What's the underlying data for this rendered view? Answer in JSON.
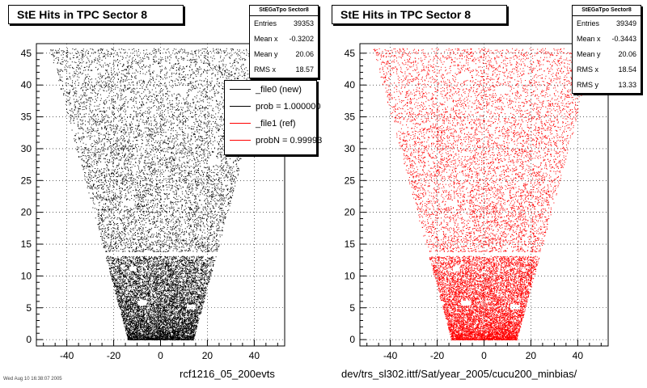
{
  "panels": [
    {
      "title": "StE Hits in TPC Sector 8",
      "color": "#000000",
      "stats": {
        "name": "StEGaTpo Sector8",
        "rows": [
          {
            "label": "Entries",
            "value": "39353"
          },
          {
            "label": "Mean x",
            "value": "-0.3202"
          },
          {
            "label": "Mean y",
            "value": "20.06"
          },
          {
            "label": "RMS x",
            "value": "18.57"
          }
        ]
      },
      "legend": [
        {
          "label": "_file0 (new)",
          "color": "#000000"
        },
        {
          "label": "prob = 1.000000",
          "color": "#000000"
        },
        {
          "label": "_file1 (ref)",
          "color": "#ff0000"
        },
        {
          "label": "probN = 0.99993",
          "color": "#ff0000"
        }
      ],
      "footer": "rcf1216_05_200evts"
    },
    {
      "title": "StE Hits in TPC Sector 8",
      "color": "#ff0000",
      "stats": {
        "name": "StEGaTpo Sector8",
        "rows": [
          {
            "label": "Entries",
            "value": "39349"
          },
          {
            "label": "Mean x",
            "value": "-0.3443"
          },
          {
            "label": "Mean y",
            "value": "20.06"
          },
          {
            "label": "RMS x",
            "value": "18.54"
          },
          {
            "label": "RMS y",
            "value": "13.33"
          }
        ]
      },
      "footer": "dev/trs_sl302.ittf/Sat/year_2005/cucu200_minbias/"
    }
  ],
  "date_stamp": "Wed Aug 10 16:38:07 2005",
  "chart_data": [
    {
      "type": "scatter",
      "title": "StE Hits in TPC Sector 8",
      "xlabel": "",
      "ylabel": "",
      "xlim": [
        -53,
        53
      ],
      "ylim": [
        -1,
        46.5
      ],
      "xticks": [
        -40,
        -20,
        0,
        20,
        40
      ],
      "yticks": [
        0,
        5,
        10,
        15,
        20,
        25,
        30,
        35,
        40,
        45
      ],
      "grid": true,
      "series": [
        {
          "name": "_file0 (new)",
          "color": "#000000"
        }
      ],
      "entries": 39353,
      "mean_x": -0.3202,
      "mean_y": 20.06,
      "rms_x": 18.57,
      "shape": {
        "bottom_half_width": 14,
        "top_half_width": 47,
        "row_gap_y": 13.5
      }
    },
    {
      "type": "scatter",
      "title": "StE Hits in TPC Sector 8",
      "xlabel": "",
      "ylabel": "",
      "xlim": [
        -53,
        53
      ],
      "ylim": [
        -1,
        46.5
      ],
      "xticks": [
        -40,
        -20,
        0,
        20,
        40
      ],
      "yticks": [
        0,
        5,
        10,
        15,
        20,
        25,
        30,
        35,
        40,
        45
      ],
      "grid": true,
      "series": [
        {
          "name": "_file1 (ref)",
          "color": "#ff0000"
        }
      ],
      "entries": 39349,
      "mean_x": -0.3443,
      "mean_y": 20.06,
      "rms_x": 18.54,
      "rms_y": 13.33,
      "shape": {
        "bottom_half_width": 14,
        "top_half_width": 47,
        "row_gap_y": 13.5
      }
    }
  ]
}
